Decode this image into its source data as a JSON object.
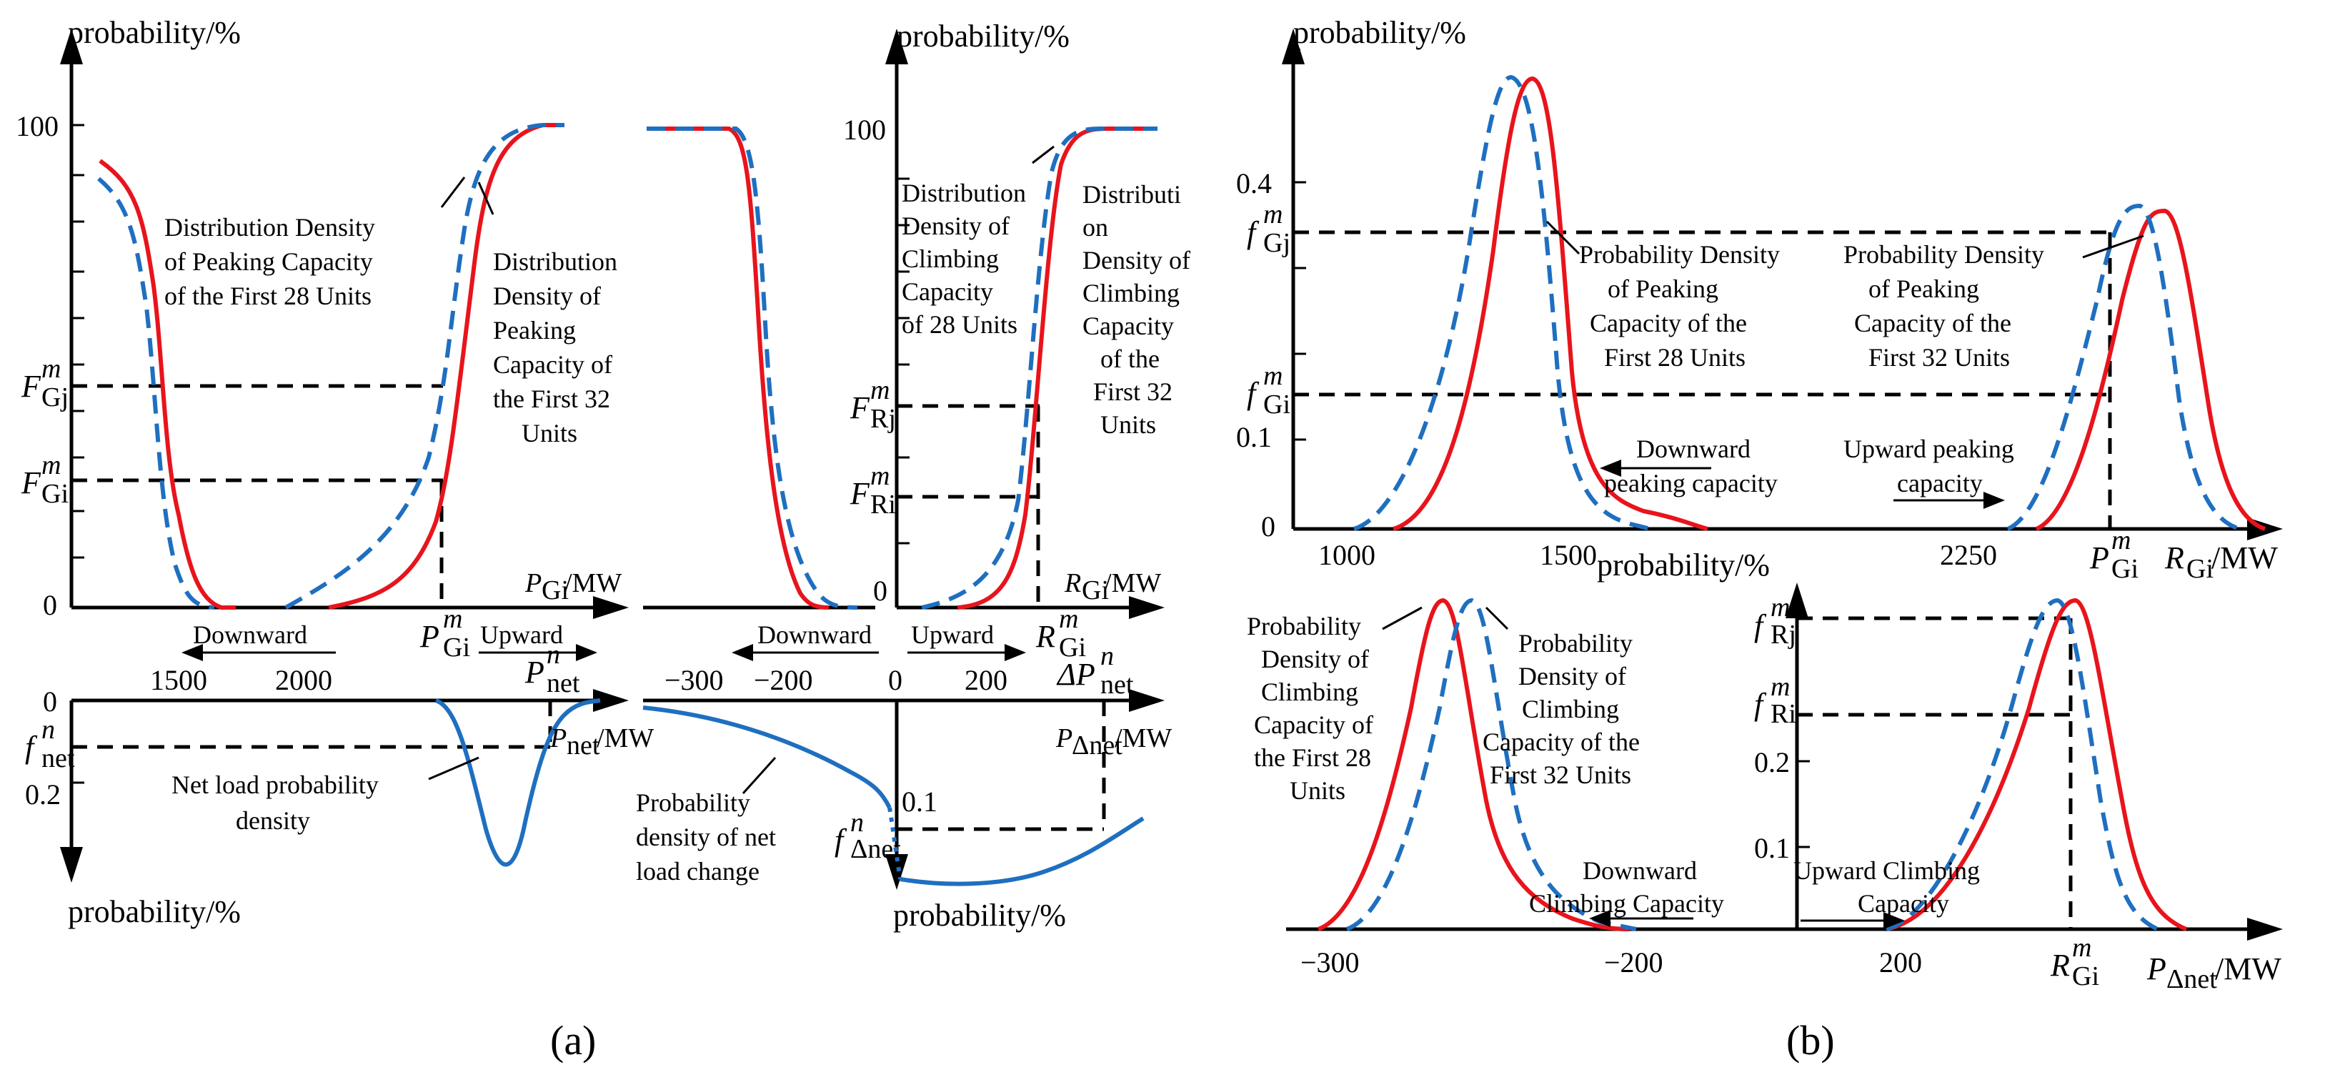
{
  "panel_a": {
    "label": "(a)",
    "top_left": {
      "ylabel": "probability/%",
      "y100": "100",
      "y0": "0",
      "F_Gj": "F",
      "F_Gj_sup": "m",
      "F_Gj_sub": "Gj",
      "F_Gi": "F",
      "F_Gi_sup": "m",
      "F_Gi_sub": "Gi",
      "curve28": "Distribution Density of Peaking Capacity of the First 28 Units",
      "curve28_lines": [
        "Distribution Density",
        "of  Peaking Capacity",
        "of the First 28 Units"
      ],
      "curve32_lines": [
        "Distribution",
        "Density of",
        "Peaking",
        "Capacity of",
        "the First 32",
        "Units"
      ],
      "xunit": "P",
      "xunit_sub": "Gi",
      "xunit_tail": "/MW",
      "pgi": "P",
      "pgi_sup": "m",
      "pgi_sub": "Gi",
      "downward": "Downward",
      "upward": "Upward",
      "pnet": "P",
      "pnet_sup": "n",
      "pnet_sub": "net",
      "ticks": [
        "1500",
        "2000"
      ]
    },
    "top_mid": {
      "y100": "100",
      "y0": "0",
      "ylabel": "probability/%",
      "F_Rj": "F",
      "F_Rj_sup": "m",
      "F_Rj_sub": "Rj",
      "F_Ri": "F",
      "F_Ri_sup": "m",
      "F_Ri_sub": "Ri",
      "curve28_lines": [
        "Distribution",
        "Density of",
        "Climbing",
        "Capacity",
        "of  28 Units"
      ],
      "curve32_lines": [
        "Distributi",
        "on",
        "Density of",
        "Climbing",
        "Capacity",
        "of the",
        "First 32",
        "Units"
      ],
      "xunit": "R",
      "xunit_sub": "Gi",
      "xunit_tail": "/MW",
      "rgi": "R",
      "rgi_sup": "m",
      "rgi_sub": "Gi",
      "downward": "Downward",
      "upward": "Upward",
      "ticks": [
        "−300",
        "−200",
        "0",
        "200"
      ],
      "dp": "ΔP",
      "dp_sup": "n",
      "dp_sub": "net"
    },
    "bottom_left": {
      "y0": "0",
      "y02": "0.2",
      "fnet": "f",
      "fnet_sup": "n",
      "fnet_sub": "net",
      "xunit": "P",
      "xunit_sub": "net",
      "xunit_tail": "/MW",
      "label_lines": [
        "Net load probability",
        "density"
      ],
      "ylabel": "probability/%"
    },
    "bottom_mid": {
      "y01": "0.1",
      "fdnet": "f",
      "fdnet_sup": "n",
      "fdnet_sub": "Δnet",
      "xunit": "P",
      "xunit_sub": "Δnet",
      "xunit_tail": "/MW",
      "label_lines": [
        "Probability",
        "density of net",
        "load change"
      ],
      "ylabel": "probability/%"
    }
  },
  "panel_b": {
    "label": "(b)",
    "top": {
      "ylabel": "probability/%",
      "y04": "0.4",
      "y01": "0.1",
      "y0": "0",
      "f_Gj": "f",
      "f_Gj_sup": "m",
      "f_Gj_sub": "Gj",
      "f_Gi": "f",
      "f_Gi_sup": "m",
      "f_Gi_sub": "Gi",
      "curve28_lines": [
        "Probability Density",
        "of  Peaking",
        "Capacity of the",
        "First 28 Units"
      ],
      "curve32_lines": [
        "Probability Density",
        "of  Peaking",
        "Capacity of the",
        "First 32 Units"
      ],
      "down_lines": [
        "Downward",
        "peaking capacity"
      ],
      "up_lines": [
        "Upward peaking",
        "capacity"
      ],
      "ticks": [
        "1000",
        "1500",
        "2250"
      ],
      "pgi": "P",
      "pgi_sup": "m",
      "pgi_sub": "Gi",
      "xunit": "R",
      "xunit_sub": "Gi",
      "xunit_tail": "/MW"
    },
    "bottom": {
      "ylabel": "probability/%",
      "f_Rj": "f",
      "f_Rj_sup": "m",
      "f_Rj_sub": "Rj",
      "f_Ri": "f",
      "f_Ri_sup": "m",
      "f_Ri_sub": "Ri",
      "y02": "0.2",
      "y01": "0.1",
      "left_curve_lines": [
        "Probability",
        "Density of",
        "Climbing",
        "Capacity of",
        "the First 28",
        "Units"
      ],
      "right_curve_lines": [
        "Probability",
        "Density of",
        "Climbing",
        "Capacity of the",
        "First 32 Units"
      ],
      "down_lines": [
        "Downward",
        "Climbing Capacity"
      ],
      "up_lines": [
        "Upward Climbing",
        "Capacity"
      ],
      "ticks": [
        "−300",
        "−200",
        "200"
      ],
      "rgi": "R",
      "rgi_sup": "m",
      "rgi_sub": "Gi",
      "xunit": "P",
      "xunit_sub": "Δnet",
      "xunit_tail": "/MW"
    }
  }
}
